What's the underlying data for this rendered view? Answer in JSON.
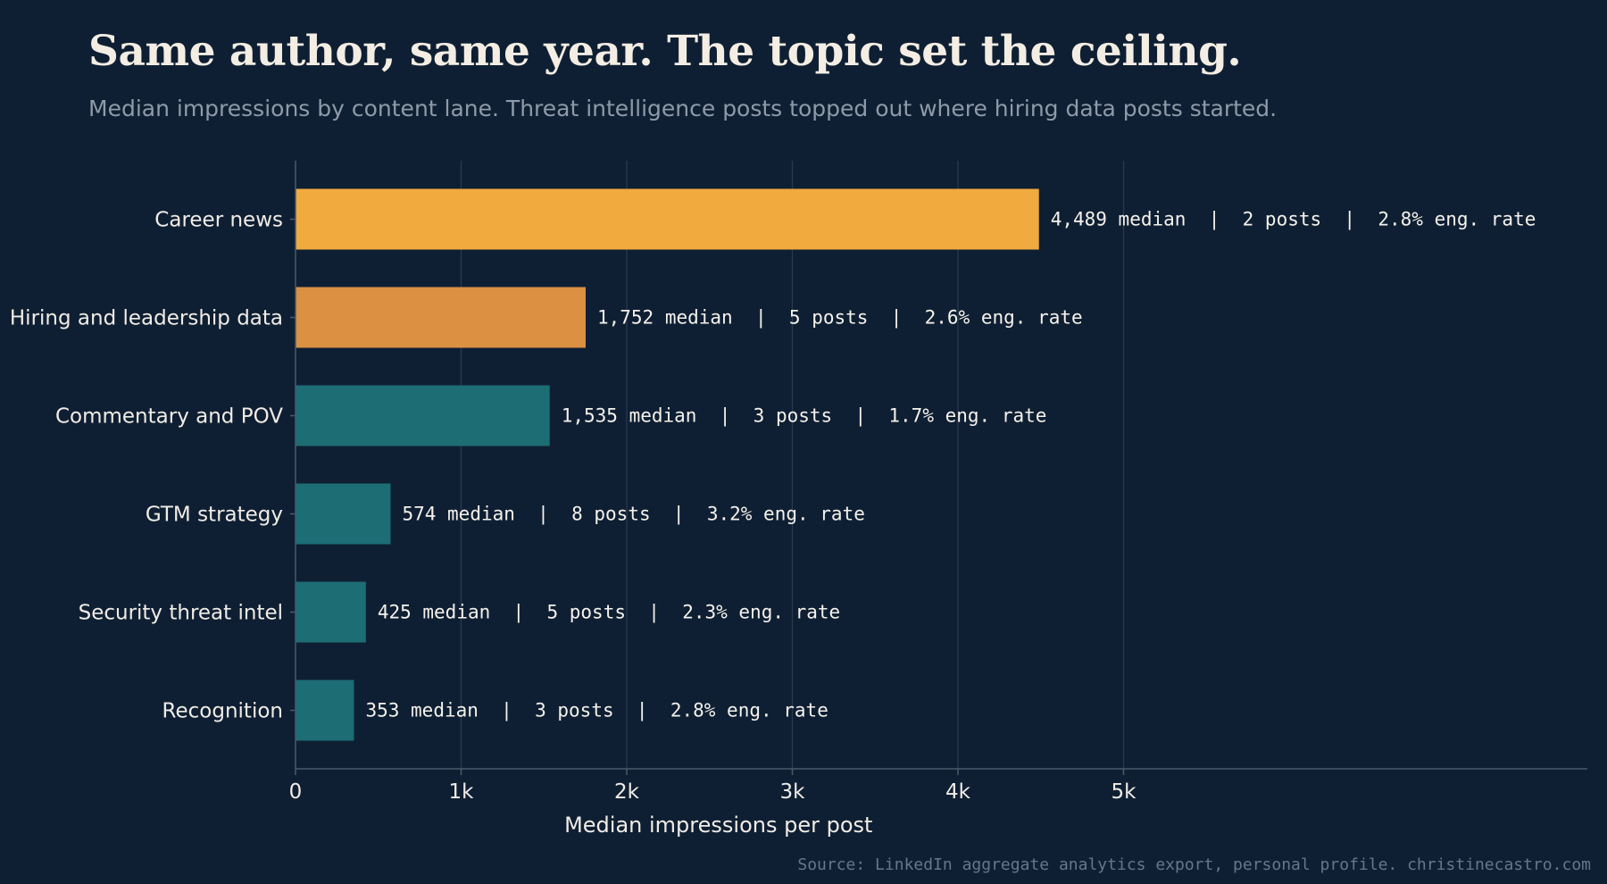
{
  "title": "Same author, same year. The topic set the ceiling.",
  "subtitle": "Median impressions by content lane. Threat intelligence posts topped out where hiring data posts started.",
  "source": "Source: LinkedIn aggregate analytics export, personal profile. christinecastro.com",
  "chart_data": {
    "type": "bar",
    "orientation": "horizontal",
    "categories": [
      "Career news",
      "Hiring and leadership data",
      "Commentary and POV",
      "GTM strategy",
      "Security threat intel",
      "Recognition"
    ],
    "values": [
      4489,
      1752,
      1535,
      574,
      425,
      353
    ],
    "data_labels": [
      "4,489 median  |  2 posts  |  2.8% eng. rate",
      "1,752 median  |  5 posts  |  2.6% eng. rate",
      "1,535 median  |  3 posts  |  1.7% eng. rate",
      "574 median  |  8 posts  |  3.2% eng. rate",
      "425 median  |  5 posts  |  2.3% eng. rate",
      "353 median  |  3 posts  |  2.8% eng. rate"
    ],
    "bar_colors": [
      "#f0aa3e",
      "#db9042",
      "#1d6d75",
      "#1d6d75",
      "#1d6d75",
      "#1d6d75"
    ],
    "xlabel": "Median impressions per post",
    "ylabel": "",
    "xlim": [
      0,
      7800
    ],
    "xticks": [
      0,
      1000,
      2000,
      3000,
      4000,
      5000
    ],
    "xtick_labels": [
      "0",
      "1k",
      "2k",
      "3k",
      "4k",
      "5k"
    ],
    "grid": "vertical",
    "legend": "none"
  },
  "colors": {
    "background": "#0f1f33",
    "grid": "#2a3a4e",
    "axis": "#4a596b",
    "text": "#f0ece6",
    "subtitle": "#8e9aa8",
    "source": "#66778b"
  }
}
